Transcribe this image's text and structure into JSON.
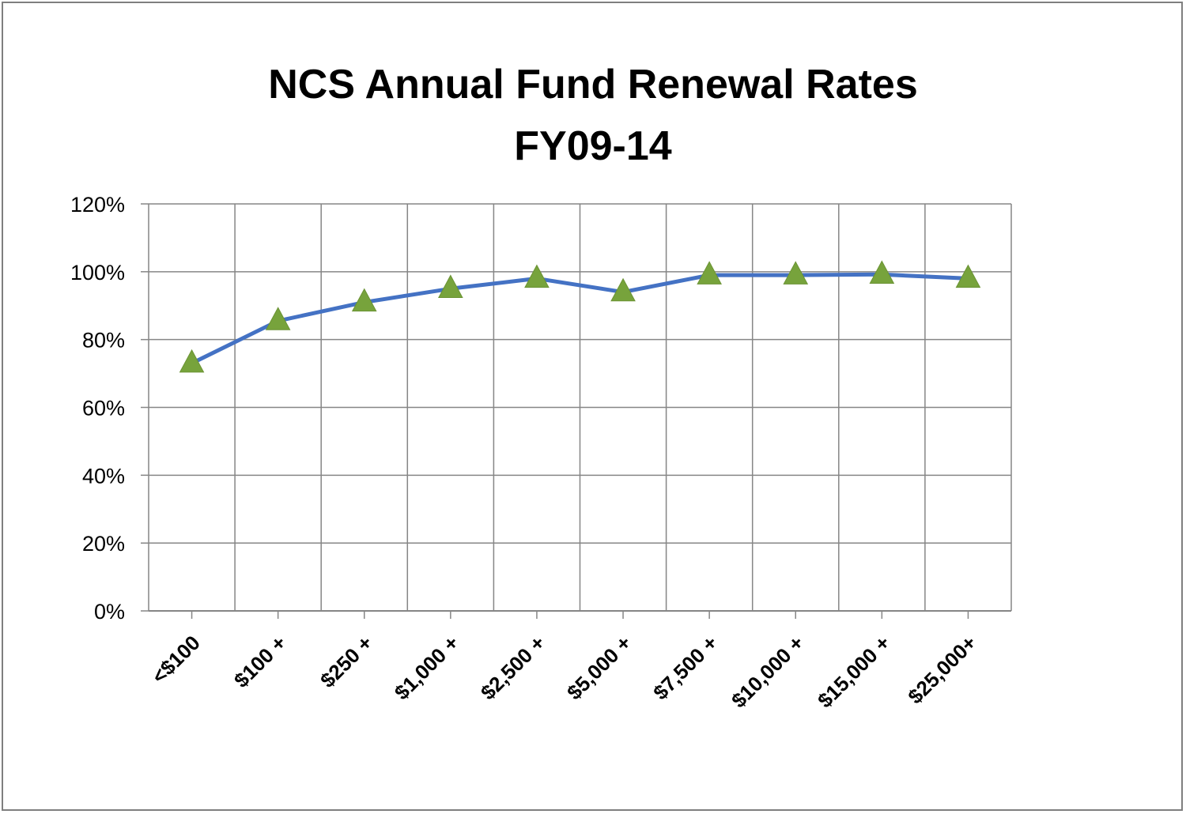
{
  "chart_data": {
    "type": "line",
    "title": [
      "NCS Annual Fund Renewal Rates",
      "FY09-14"
    ],
    "xlabel": "",
    "ylabel": "",
    "categories": [
      "<$100",
      "$100 +",
      "$250 +",
      "$1,000 +",
      "$2,500 +",
      "$5,000 +",
      "$7,500 +",
      "$10,000 +",
      "$15,000 +",
      "$25,000+"
    ],
    "series": [
      {
        "values": [
          73,
          85.5,
          91,
          95,
          98,
          94,
          99,
          99,
          99.2,
          98
        ]
      }
    ],
    "ylim": [
      0,
      120
    ],
    "yticks": [
      0,
      20,
      40,
      60,
      80,
      100,
      120
    ],
    "ytick_labels": [
      "0%",
      "20%",
      "40%",
      "60%",
      "80%",
      "100%",
      "120%"
    ],
    "grid": true,
    "legend": "none",
    "colors": {
      "line": "#4472c4",
      "marker": "#77a33c",
      "grid": "#868686",
      "axis": "#868686",
      "border": "#7f7f7f"
    },
    "marker": "triangle"
  }
}
